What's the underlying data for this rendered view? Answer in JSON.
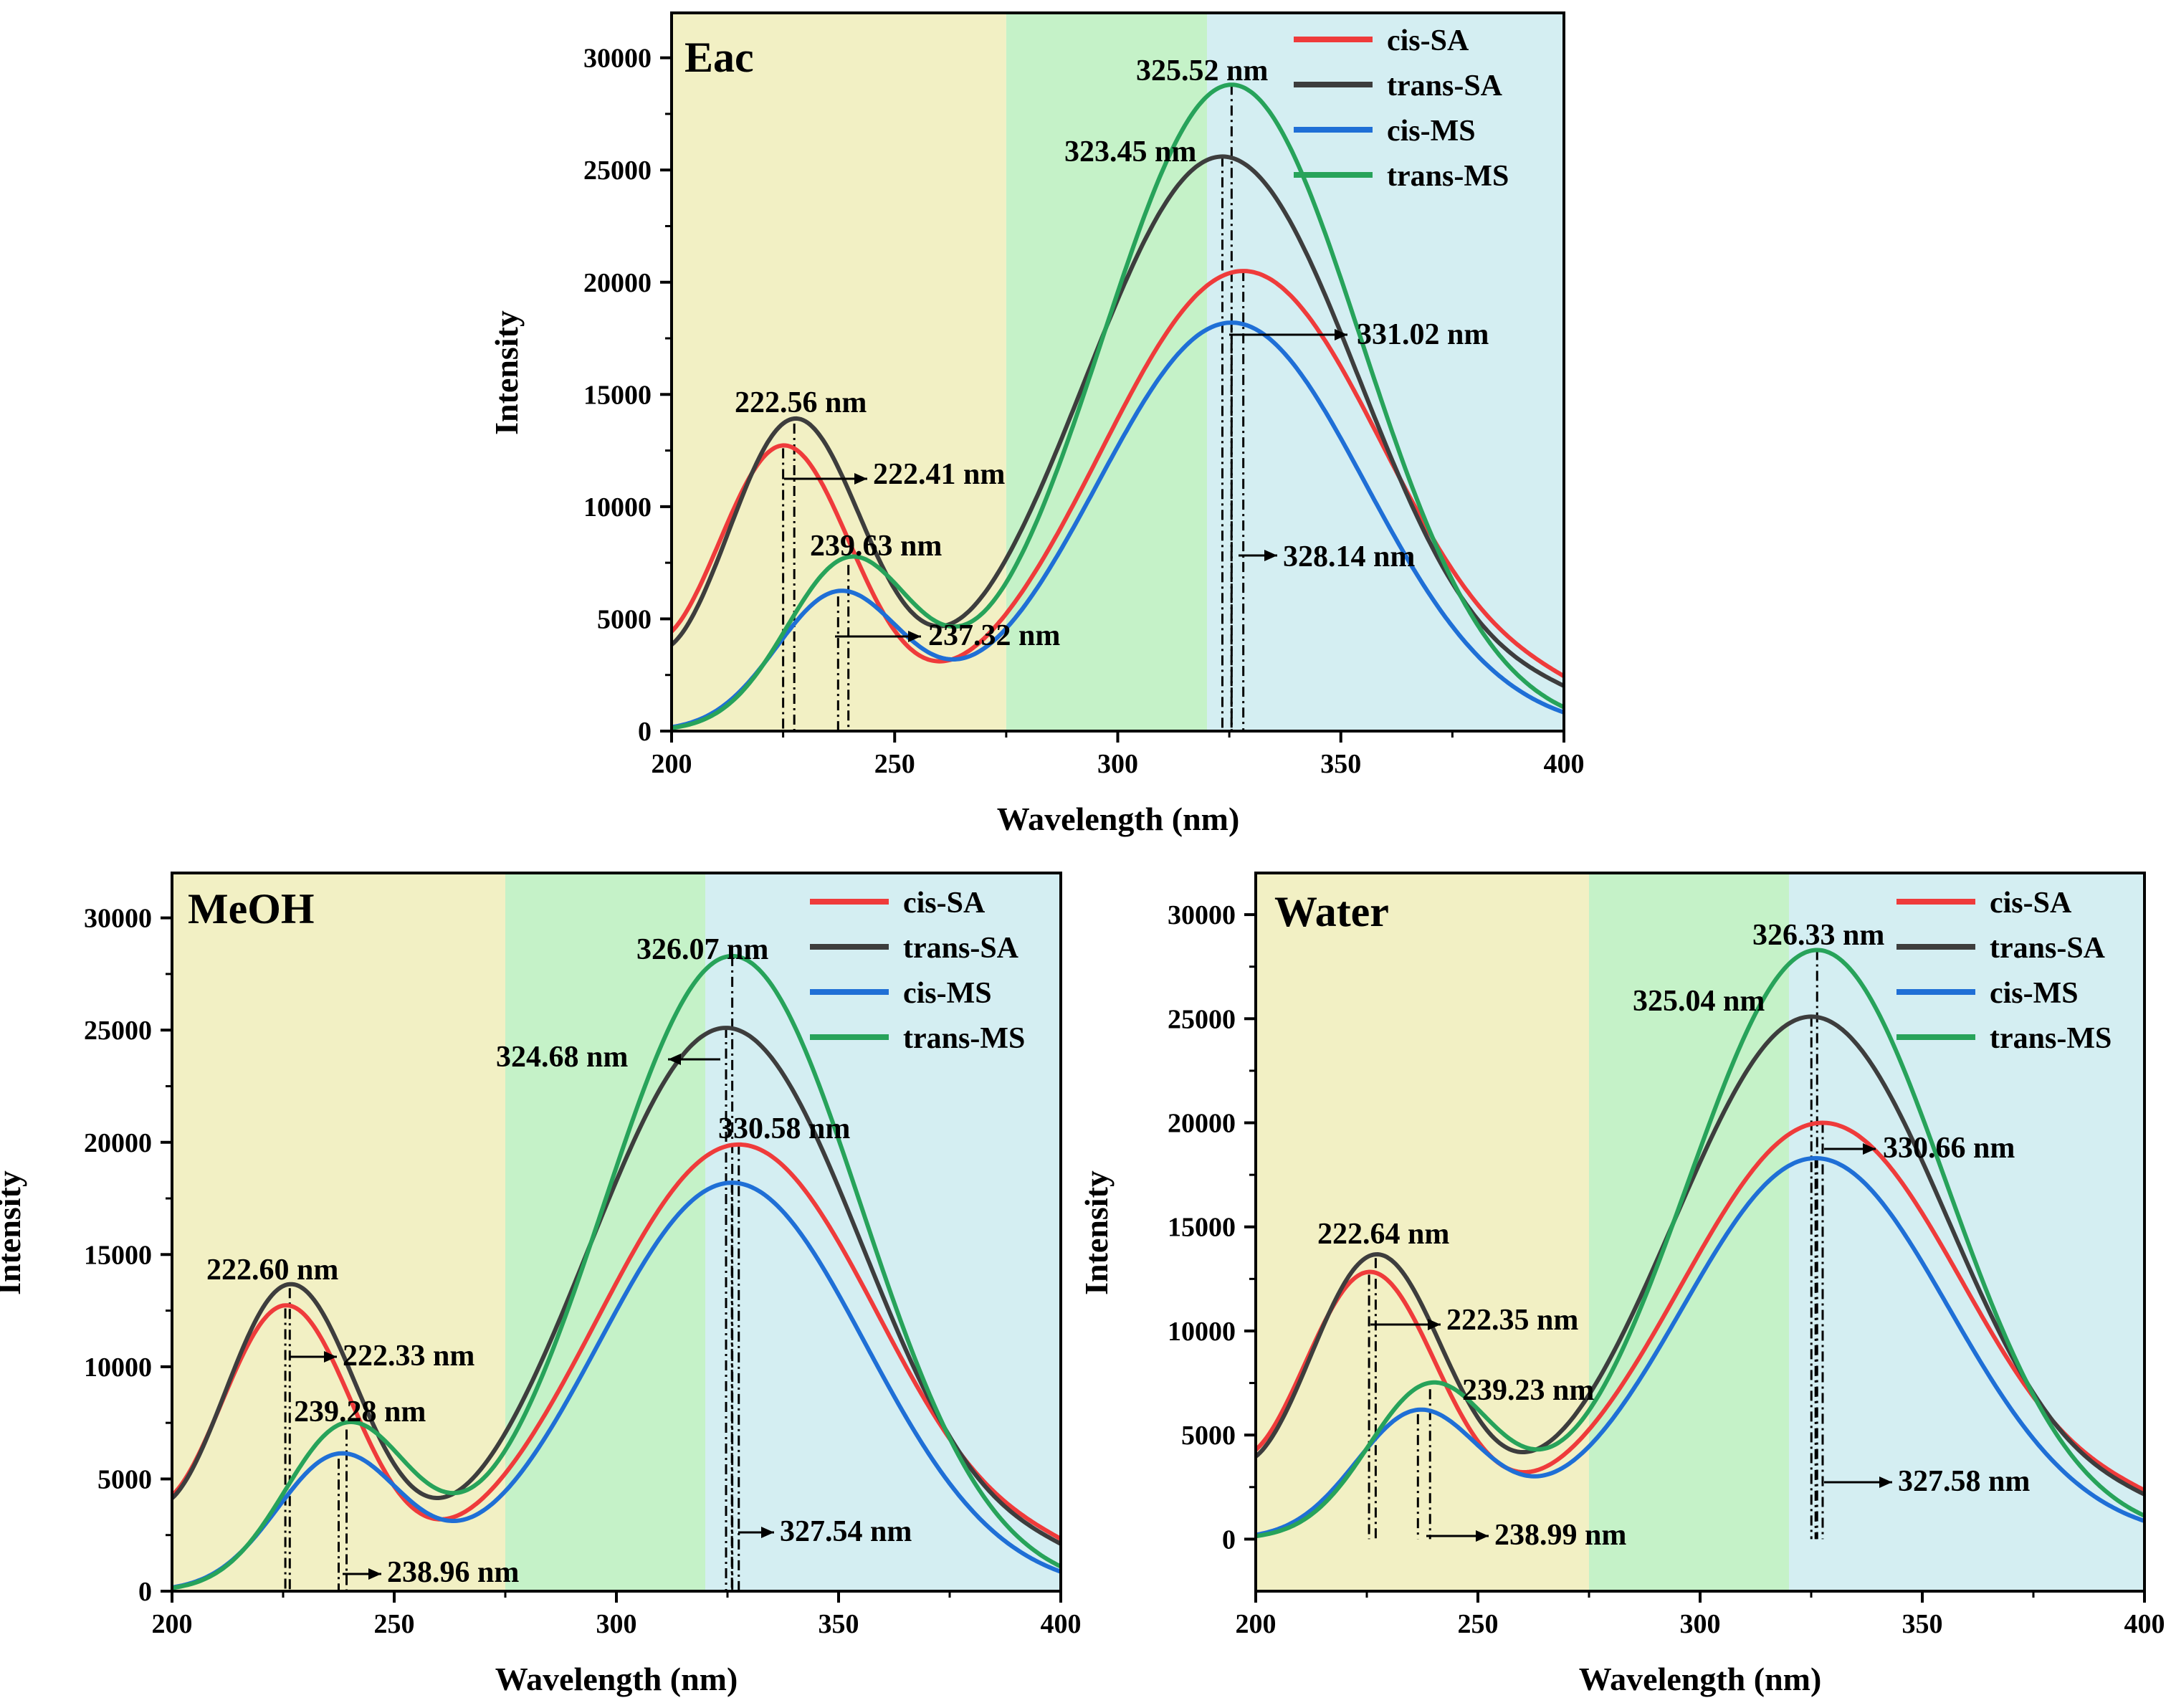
{
  "chart_data": [
    {
      "type": "line",
      "title": "Eac",
      "xlabel": "Wavelength (nm)",
      "ylabel": "Intensity",
      "xlim": [
        200,
        400
      ],
      "ylim": [
        0,
        32000
      ],
      "xticks": [
        200,
        250,
        300,
        350,
        400
      ],
      "xtick_labels": [
        "200",
        "250",
        "300",
        "350",
        "400"
      ],
      "yticks": [
        0,
        5000,
        10000,
        15000,
        20000,
        25000,
        30000
      ],
      "ytick_labels": [
        "0",
        "5000",
        "10000",
        "15000",
        "20000",
        "25000",
        "30000"
      ],
      "regions": [
        {
          "from": 200,
          "to": 275,
          "color": "#f2f0c4"
        },
        {
          "from": 275,
          "to": 320,
          "color": "#c5f2c8"
        },
        {
          "from": 320,
          "to": 400,
          "color": "#d4eef2"
        }
      ],
      "series": [
        {
          "name": "cis-SA",
          "color": "#ef3b3b",
          "peaks": [
            {
              "x": 225.0,
              "y": 12600,
              "w": 15.5
            },
            {
              "x": 328.14,
              "y": 20500,
              "w": 32
            }
          ],
          "baseline": 1000
        },
        {
          "name": "trans-SA",
          "color": "#3d3d3d",
          "peaks": [
            {
              "x": 227.5,
              "y": 13700,
              "w": 15.5
            },
            {
              "x": 323.45,
              "y": 25600,
              "w": 31
            }
          ],
          "baseline": 1000
        },
        {
          "name": "cis-MS",
          "color": "#1f6fd6",
          "peaks": [
            {
              "x": 237.32,
              "y": 6000,
              "w": 14
            },
            {
              "x": 325.5,
              "y": 18200,
              "w": 30
            }
          ],
          "baseline": 0
        },
        {
          "name": "trans-MS",
          "color": "#27a35a",
          "peaks": [
            {
              "x": 239.63,
              "y": 7400,
              "w": 14
            },
            {
              "x": 325.52,
              "y": 28800,
              "w": 29
            }
          ],
          "baseline": 0
        }
      ],
      "annotations": [
        "222.56 nm",
        "222.41 nm",
        "239.63 nm",
        "237.32 nm",
        "325.52 nm",
        "323.45 nm",
        "331.02 nm",
        "328.14 nm"
      ],
      "legend": [
        "cis-SA",
        "trans-SA",
        "cis-MS",
        "trans-MS"
      ]
    },
    {
      "type": "line",
      "title": "MeOH",
      "xlabel": "Wavelength (nm)",
      "ylabel": "Intensity",
      "xlim": [
        200,
        400
      ],
      "ylim": [
        0,
        32000
      ],
      "xticks": [
        200,
        250,
        300,
        350,
        400
      ],
      "xtick_labels": [
        "200",
        "250",
        "300",
        "350",
        "400"
      ],
      "yticks": [
        0,
        5000,
        10000,
        15000,
        20000,
        25000,
        30000
      ],
      "ytick_labels": [
        "0",
        "5000",
        "10000",
        "15000",
        "20000",
        "25000",
        "30000"
      ],
      "regions": [
        {
          "from": 200,
          "to": 275,
          "color": "#f2f0c4"
        },
        {
          "from": 275,
          "to": 320,
          "color": "#c5f2c8"
        },
        {
          "from": 320,
          "to": 400,
          "color": "#d4eef2"
        }
      ],
      "series": [
        {
          "name": "cis-SA",
          "color": "#ef3b3b",
          "peaks": [
            {
              "x": 225.5,
              "y": 12600,
              "w": 15.5
            },
            {
              "x": 327.54,
              "y": 19900,
              "w": 32
            }
          ],
          "baseline": 1000
        },
        {
          "name": "trans-SA",
          "color": "#3d3d3d",
          "peaks": [
            {
              "x": 226.5,
              "y": 13500,
              "w": 15.5
            },
            {
              "x": 324.68,
              "y": 25100,
              "w": 31
            }
          ],
          "baseline": 1000
        },
        {
          "name": "cis-MS",
          "color": "#1f6fd6",
          "peaks": [
            {
              "x": 237.5,
              "y": 5900,
              "w": 14
            },
            {
              "x": 326.0,
              "y": 18200,
              "w": 30
            }
          ],
          "baseline": 0
        },
        {
          "name": "trans-MS",
          "color": "#27a35a",
          "peaks": [
            {
              "x": 239.28,
              "y": 7200,
              "w": 14
            },
            {
              "x": 326.07,
              "y": 28300,
              "w": 29
            }
          ],
          "baseline": 0
        }
      ],
      "annotations": [
        "222.60 nm",
        "222.33 nm",
        "239.28 nm",
        "238.96 nm",
        "326.07 nm",
        "324.68 nm",
        "330.58 nm",
        "327.54 nm"
      ],
      "legend": [
        "cis-SA",
        "trans-SA",
        "cis-MS",
        "trans-MS"
      ]
    },
    {
      "type": "line",
      "title": "Water",
      "xlabel": "Wavelength (nm)",
      "ylabel": "Intensity",
      "xlim": [
        200,
        400
      ],
      "ylim": [
        -2500,
        32000
      ],
      "xticks": [
        200,
        250,
        300,
        350,
        400
      ],
      "xtick_labels": [
        "200",
        "250",
        "300",
        "350",
        "400"
      ],
      "yticks": [
        0,
        5000,
        10000,
        15000,
        20000,
        25000,
        30000
      ],
      "ytick_labels": [
        "0",
        "5000",
        "10000",
        "15000",
        "20000",
        "25000",
        "30000"
      ],
      "regions": [
        {
          "from": 200,
          "to": 275,
          "color": "#f2f0c4"
        },
        {
          "from": 275,
          "to": 320,
          "color": "#c5f2c8"
        },
        {
          "from": 320,
          "to": 400,
          "color": "#d4eef2"
        }
      ],
      "series": [
        {
          "name": "cis-SA",
          "color": "#ef3b3b",
          "peaks": [
            {
              "x": 225.5,
              "y": 12700,
              "w": 15.5
            },
            {
              "x": 327.58,
              "y": 20000,
              "w": 32
            }
          ],
          "baseline": 1000
        },
        {
          "name": "trans-SA",
          "color": "#3d3d3d",
          "peaks": [
            {
              "x": 227.0,
              "y": 13500,
              "w": 15.5
            },
            {
              "x": 325.04,
              "y": 25100,
              "w": 31
            }
          ],
          "baseline": 1000
        },
        {
          "name": "cis-MS",
          "color": "#1f6fd6",
          "peaks": [
            {
              "x": 236.5,
              "y": 6000,
              "w": 14
            },
            {
              "x": 326.0,
              "y": 18300,
              "w": 30
            }
          ],
          "baseline": 0
        },
        {
          "name": "trans-MS",
          "color": "#27a35a",
          "peaks": [
            {
              "x": 239.23,
              "y": 7200,
              "w": 14
            },
            {
              "x": 326.33,
              "y": 28300,
              "w": 29
            }
          ],
          "baseline": 0
        }
      ],
      "annotations": [
        "222.64 nm",
        "222.35 nm",
        "239.23 nm",
        "238.99 nm",
        "326.33 nm",
        "325.04 nm",
        "330.66 nm",
        "327.58 nm"
      ],
      "legend": [
        "cis-SA",
        "trans-SA",
        "cis-MS",
        "trans-MS"
      ]
    }
  ]
}
